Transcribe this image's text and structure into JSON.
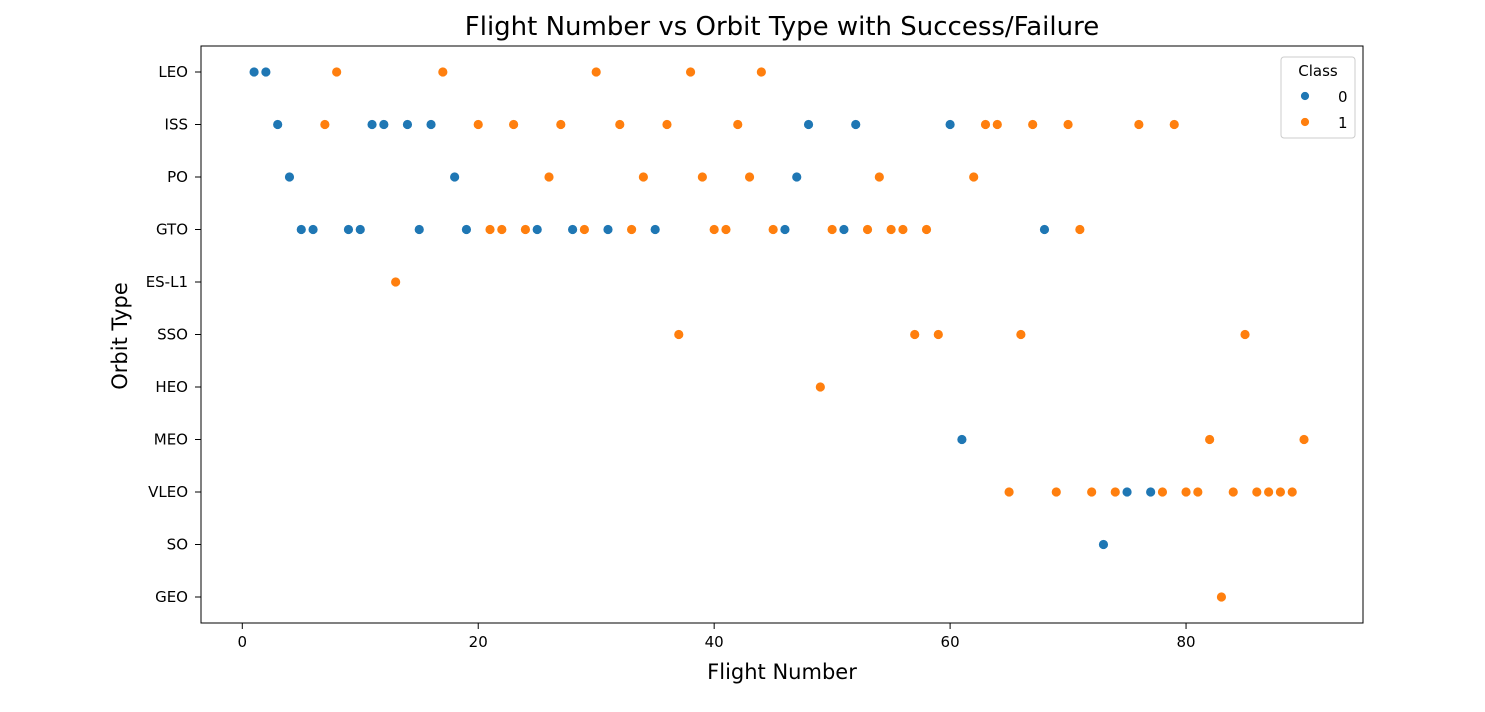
{
  "chart_data": {
    "type": "scatter",
    "title": "Flight Number vs Orbit Type with Success/Failure",
    "xlabel": "Flight Number",
    "ylabel": "Orbit Type",
    "xlim": [
      -3.5,
      95
    ],
    "xticks": [
      0,
      20,
      40,
      60,
      80
    ],
    "categories": [
      "LEO",
      "ISS",
      "PO",
      "GTO",
      "ES-L1",
      "SSO",
      "HEO",
      "MEO",
      "VLEO",
      "SO",
      "GEO"
    ],
    "grid": false,
    "legend": {
      "title": "Class",
      "placement": "top-right",
      "entries": [
        {
          "label": "0",
          "color": "#1f77b4"
        },
        {
          "label": "1",
          "color": "#ff7f0e"
        }
      ]
    },
    "series": [
      {
        "name": "0",
        "color": "#1f77b4",
        "points": [
          [
            1,
            "LEO"
          ],
          [
            2,
            "LEO"
          ],
          [
            3,
            "ISS"
          ],
          [
            11,
            "ISS"
          ],
          [
            12,
            "ISS"
          ],
          [
            14,
            "ISS"
          ],
          [
            16,
            "ISS"
          ],
          [
            48,
            "ISS"
          ],
          [
            52,
            "ISS"
          ],
          [
            60,
            "ISS"
          ],
          [
            4,
            "PO"
          ],
          [
            18,
            "PO"
          ],
          [
            47,
            "PO"
          ],
          [
            5,
            "GTO"
          ],
          [
            6,
            "GTO"
          ],
          [
            9,
            "GTO"
          ],
          [
            10,
            "GTO"
          ],
          [
            15,
            "GTO"
          ],
          [
            19,
            "GTO"
          ],
          [
            25,
            "GTO"
          ],
          [
            28,
            "GTO"
          ],
          [
            31,
            "GTO"
          ],
          [
            35,
            "GTO"
          ],
          [
            46,
            "GTO"
          ],
          [
            51,
            "GTO"
          ],
          [
            68,
            "GTO"
          ],
          [
            61,
            "MEO"
          ],
          [
            75,
            "VLEO"
          ],
          [
            77,
            "VLEO"
          ],
          [
            73,
            "SO"
          ]
        ]
      },
      {
        "name": "1",
        "color": "#ff7f0e",
        "points": [
          [
            8,
            "LEO"
          ],
          [
            17,
            "LEO"
          ],
          [
            30,
            "LEO"
          ],
          [
            38,
            "LEO"
          ],
          [
            44,
            "LEO"
          ],
          [
            7,
            "ISS"
          ],
          [
            20,
            "ISS"
          ],
          [
            23,
            "ISS"
          ],
          [
            27,
            "ISS"
          ],
          [
            32,
            "ISS"
          ],
          [
            36,
            "ISS"
          ],
          [
            42,
            "ISS"
          ],
          [
            63,
            "ISS"
          ],
          [
            64,
            "ISS"
          ],
          [
            67,
            "ISS"
          ],
          [
            70,
            "ISS"
          ],
          [
            76,
            "ISS"
          ],
          [
            79,
            "ISS"
          ],
          [
            26,
            "PO"
          ],
          [
            34,
            "PO"
          ],
          [
            39,
            "PO"
          ],
          [
            43,
            "PO"
          ],
          [
            54,
            "PO"
          ],
          [
            62,
            "PO"
          ],
          [
            21,
            "GTO"
          ],
          [
            22,
            "GTO"
          ],
          [
            24,
            "GTO"
          ],
          [
            29,
            "GTO"
          ],
          [
            33,
            "GTO"
          ],
          [
            40,
            "GTO"
          ],
          [
            41,
            "GTO"
          ],
          [
            45,
            "GTO"
          ],
          [
            50,
            "GTO"
          ],
          [
            53,
            "GTO"
          ],
          [
            55,
            "GTO"
          ],
          [
            56,
            "GTO"
          ],
          [
            58,
            "GTO"
          ],
          [
            71,
            "GTO"
          ],
          [
            13,
            "ES-L1"
          ],
          [
            37,
            "SSO"
          ],
          [
            57,
            "SSO"
          ],
          [
            59,
            "SSO"
          ],
          [
            66,
            "SSO"
          ],
          [
            85,
            "SSO"
          ],
          [
            49,
            "HEO"
          ],
          [
            82,
            "MEO"
          ],
          [
            90,
            "MEO"
          ],
          [
            65,
            "VLEO"
          ],
          [
            69,
            "VLEO"
          ],
          [
            72,
            "VLEO"
          ],
          [
            74,
            "VLEO"
          ],
          [
            78,
            "VLEO"
          ],
          [
            80,
            "VLEO"
          ],
          [
            81,
            "VLEO"
          ],
          [
            84,
            "VLEO"
          ],
          [
            86,
            "VLEO"
          ],
          [
            87,
            "VLEO"
          ],
          [
            88,
            "VLEO"
          ],
          [
            89,
            "VLEO"
          ],
          [
            83,
            "GEO"
          ]
        ]
      }
    ]
  }
}
